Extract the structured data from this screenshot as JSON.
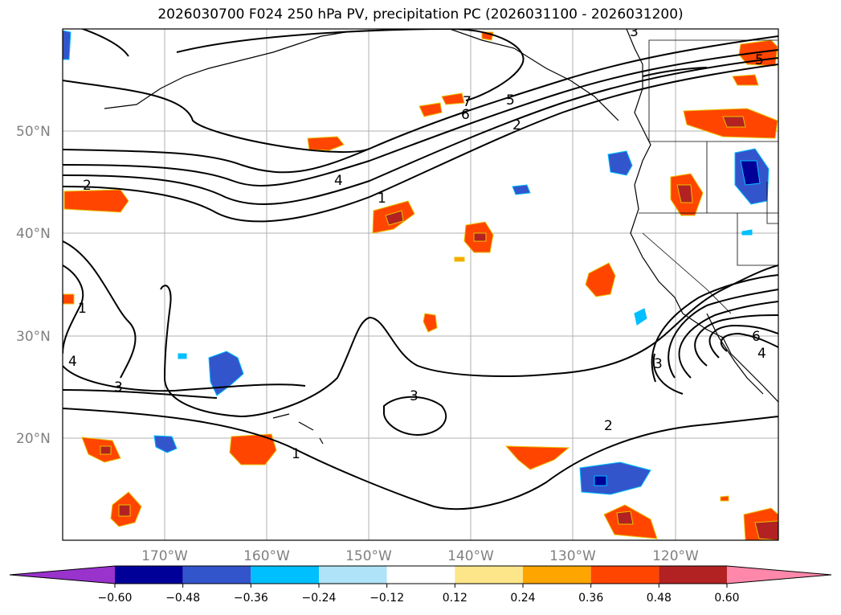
{
  "title": "2026030700 F024 250 hPa PV, precipitation PC (2026031100 - 2026031200)",
  "colors": {
    "map_border": "#000000",
    "grid": "#b0b0b0",
    "coast": "#000000",
    "contour": "#000000",
    "axis_label": "#808080"
  },
  "lat_labels": [
    "50°N",
    "40°N",
    "30°N",
    "20°N"
  ],
  "lon_labels": [
    "170°W",
    "160°W",
    "150°W",
    "140°W",
    "130°W",
    "120°W"
  ],
  "contour_labels": [
    "2",
    "4",
    "1",
    "7",
    "6",
    "5",
    "2",
    "1",
    "3",
    "4",
    "3",
    "1",
    "3",
    "2",
    "6",
    "4",
    "5",
    "3"
  ],
  "colorbar": {
    "ticks": [
      "−0.60",
      "−0.48",
      "−0.36",
      "−0.24",
      "−0.12",
      "0.12",
      "0.24",
      "0.36",
      "0.48",
      "0.60"
    ],
    "bins": [
      {
        "range": "< -0.60",
        "color": "#9933cc"
      },
      {
        "range": "-0.60 to -0.48",
        "color": "#000099"
      },
      {
        "range": "-0.48 to -0.36",
        "color": "#3355cc"
      },
      {
        "range": "-0.36 to -0.24",
        "color": "#00bfff"
      },
      {
        "range": "-0.24 to -0.12",
        "color": "#aee3f8"
      },
      {
        "range": "-0.12 to 0.12",
        "color": "#ffffff"
      },
      {
        "range": "0.12 to 0.24",
        "color": "#fde68a"
      },
      {
        "range": "0.24 to 0.36",
        "color": "#ffa500"
      },
      {
        "range": "0.36 to 0.48",
        "color": "#ff4500"
      },
      {
        "range": "0.48 to 0.60",
        "color": "#b22222"
      },
      {
        "range": "> 0.60",
        "color": "#ff88aa"
      }
    ]
  }
}
